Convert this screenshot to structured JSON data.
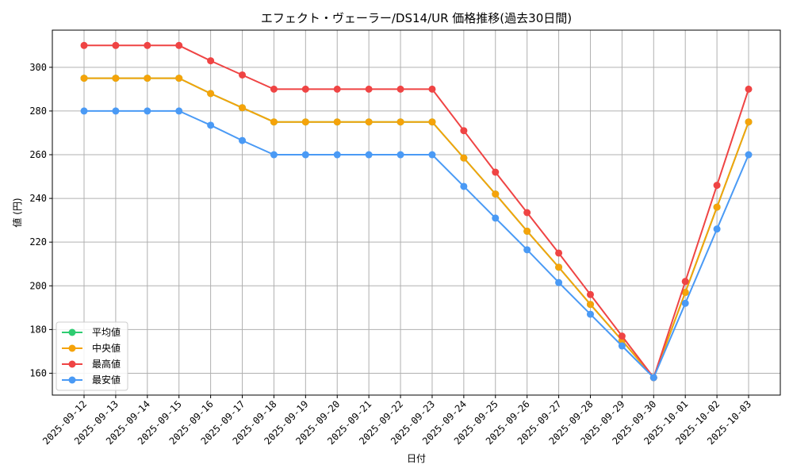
{
  "chart_data": {
    "type": "line",
    "title": "エフェクト・ヴェーラー/DS14/UR 価格推移(過去30日間)",
    "xlabel": "日付",
    "ylabel": "値 (円)",
    "ylim": [
      150,
      317
    ],
    "yticks": [
      160,
      180,
      200,
      220,
      240,
      260,
      280,
      300
    ],
    "grid": true,
    "legend_position": "lower-left",
    "categories": [
      "2025-09-12",
      "2025-09-13",
      "2025-09-14",
      "2025-09-15",
      "2025-09-16",
      "2025-09-17",
      "2025-09-18",
      "2025-09-19",
      "2025-09-20",
      "2025-09-21",
      "2025-09-22",
      "2025-09-23",
      "2025-09-24",
      "2025-09-25",
      "2025-09-26",
      "2025-09-27",
      "2025-09-28",
      "2025-09-29",
      "2025-09-30",
      "2025-10-01",
      "2025-10-02",
      "2025-10-03"
    ],
    "series": [
      {
        "name": "平均値",
        "color": "#2ecc71",
        "values": [
          295,
          295,
          295,
          295,
          288,
          281.5,
          275,
          275,
          275,
          275,
          275,
          275,
          258.5,
          242,
          225,
          208.5,
          191.5,
          175,
          158,
          197,
          236,
          275
        ]
      },
      {
        "name": "中央値",
        "color": "#f5a30a",
        "values": [
          295,
          295,
          295,
          295,
          288,
          281.5,
          275,
          275,
          275,
          275,
          275,
          275,
          258.5,
          242,
          225,
          208.5,
          191.5,
          175,
          158,
          197,
          236,
          275
        ]
      },
      {
        "name": "最高値",
        "color": "#ef4444",
        "values": [
          310,
          310,
          310,
          310,
          303,
          296.5,
          290,
          290,
          290,
          290,
          290,
          290,
          271,
          252,
          233.5,
          215,
          196,
          177,
          158,
          202,
          246,
          290
        ]
      },
      {
        "name": "最安値",
        "color": "#4a9af5",
        "values": [
          280,
          280,
          280,
          280,
          273.5,
          266.5,
          260,
          260,
          260,
          260,
          260,
          260,
          245.5,
          231,
          216.5,
          201.5,
          187,
          172.5,
          158,
          192,
          226,
          260
        ]
      }
    ]
  }
}
